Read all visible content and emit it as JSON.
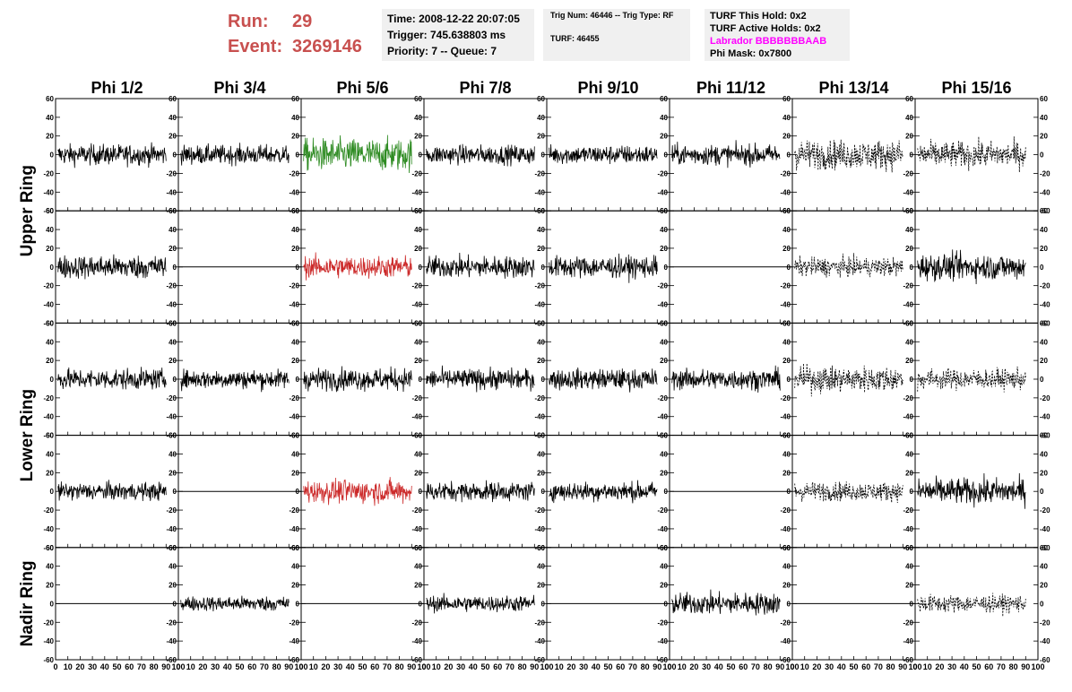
{
  "header": {
    "run_label": "Run:",
    "run_value": "29",
    "event_label": "Event:",
    "event_value": "3269146",
    "time": "Time: 2008-12-22 20:07:05",
    "trigger": "Trigger: 745.638803 ms",
    "priority": "Priority: 7 -- Queue: 7",
    "trig_num": "Trig Num: 46446 -- Trig Type: RF",
    "turf": "TURF: 46455",
    "turf_this_hold": "TURF This Hold: 0x2",
    "turf_active_holds": "TURF Active Holds: 0x2",
    "labrador": "Labrador BBBBBBBAAB",
    "phi_mask": "Phi Mask: 0x7800"
  },
  "colors": {
    "header_red": "#c8504f",
    "labrador_magenta": "#ff00ff",
    "trace_black": "#000000",
    "trace_green": "#2e8b22",
    "trace_red": "#cc2a2a"
  },
  "chart_data": {
    "type": "line",
    "columns": [
      "Phi 1/2",
      "Phi 3/4",
      "Phi 5/6",
      "Phi 7/8",
      "Phi 9/10",
      "Phi 11/12",
      "Phi 13/14",
      "Phi 15/16"
    ],
    "ring_labels": [
      {
        "label": "Upper Ring",
        "rows": [
          0,
          1
        ]
      },
      {
        "label": "Lower Ring",
        "rows": [
          2,
          3
        ]
      },
      {
        "label": "Nadir Ring",
        "rows": [
          4
        ]
      }
    ],
    "xlim": [
      0,
      100
    ],
    "ylim": [
      -60,
      60
    ],
    "xticks": [
      "0",
      "10",
      "20",
      "30",
      "40",
      "50",
      "60",
      "70",
      "80",
      "90",
      "100"
    ],
    "yticks": [
      "-60",
      "-40",
      "-20",
      "0",
      "20",
      "40",
      "60"
    ],
    "panels": [
      [
        {
          "style": "solid",
          "color": "black",
          "amp": 14
        },
        {
          "style": "solid",
          "color": "black",
          "amp": 13
        },
        {
          "style": "solid",
          "color": "green",
          "amp": 22
        },
        {
          "style": "solid",
          "color": "black",
          "amp": 13
        },
        {
          "style": "solid",
          "color": "black",
          "amp": 13
        },
        {
          "style": "solid",
          "color": "black",
          "amp": 14
        },
        {
          "style": "dashed",
          "color": "black",
          "amp": 20
        },
        {
          "style": "dashed",
          "color": "black",
          "amp": 18
        }
      ],
      [
        {
          "style": "solid",
          "color": "black",
          "amp": 16
        },
        {
          "style": "flat",
          "color": "black",
          "amp": 0
        },
        {
          "style": "solid",
          "color": "red",
          "amp": 15
        },
        {
          "style": "solid",
          "color": "black",
          "amp": 15
        },
        {
          "style": "solid",
          "color": "black",
          "amp": 15
        },
        {
          "style": "flat",
          "color": "black",
          "amp": 0
        },
        {
          "style": "dashed",
          "color": "black",
          "amp": 13
        },
        {
          "style": "solid",
          "color": "black",
          "amp": 18
        }
      ],
      [
        {
          "style": "solid",
          "color": "black",
          "amp": 14
        },
        {
          "style": "solid",
          "color": "black",
          "amp": 13
        },
        {
          "style": "solid",
          "color": "black",
          "amp": 15
        },
        {
          "style": "solid",
          "color": "black",
          "amp": 14
        },
        {
          "style": "solid",
          "color": "black",
          "amp": 14
        },
        {
          "style": "solid",
          "color": "black",
          "amp": 14
        },
        {
          "style": "dashed",
          "color": "black",
          "amp": 18
        },
        {
          "style": "dashed",
          "color": "black",
          "amp": 14
        }
      ],
      [
        {
          "style": "solid",
          "color": "black",
          "amp": 12
        },
        {
          "style": "flat",
          "color": "black",
          "amp": 0
        },
        {
          "style": "solid",
          "color": "red",
          "amp": 16
        },
        {
          "style": "solid",
          "color": "black",
          "amp": 13
        },
        {
          "style": "solid",
          "color": "black",
          "amp": 13
        },
        {
          "style": "flat",
          "color": "black",
          "amp": 0
        },
        {
          "style": "dashed",
          "color": "black",
          "amp": 13
        },
        {
          "style": "solid",
          "color": "black",
          "amp": 18
        }
      ],
      [
        {
          "style": "flat",
          "color": "black",
          "amp": 0
        },
        {
          "style": "solid",
          "color": "black",
          "amp": 10
        },
        {
          "style": "flat",
          "color": "black",
          "amp": 0
        },
        {
          "style": "solid",
          "color": "black",
          "amp": 11
        },
        {
          "style": "flat",
          "color": "black",
          "amp": 0
        },
        {
          "style": "solid",
          "color": "black",
          "amp": 15
        },
        {
          "style": "flat",
          "color": "black",
          "amp": 0
        },
        {
          "style": "dashed",
          "color": "black",
          "amp": 12
        }
      ]
    ]
  }
}
